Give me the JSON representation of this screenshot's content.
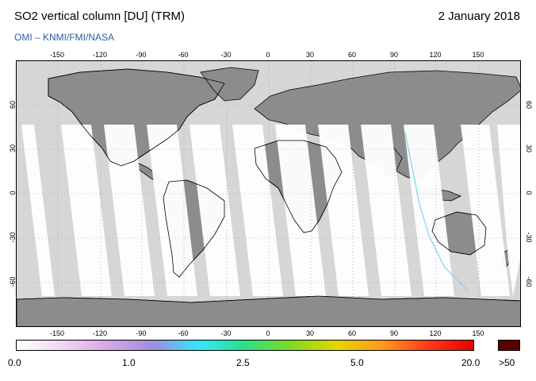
{
  "header": {
    "title": "SO2 vertical column [DU] (TRM)",
    "date": "2 January 2018",
    "credit": "OMI  –  KNMI/FMI/NASA"
  },
  "map": {
    "lon_ticks": [
      "-150",
      "-120",
      "-90",
      "-60",
      "-30",
      "0",
      "30",
      "60",
      "90",
      "120",
      "150"
    ],
    "lat_ticks": [
      "60",
      "30",
      "0",
      "-30",
      "-60"
    ],
    "colors": {
      "land": "#8c8c8c",
      "no_data": "#d6d6d6",
      "swath": "#ffffff",
      "coast": "#000000",
      "grid": "#8a8a8a"
    }
  },
  "colorbar": {
    "labels": [
      "0.0",
      "1.0",
      "2.5",
      "5.0",
      "20.0",
      ">50"
    ],
    "stops": [
      "#ffffff",
      "#f2d6f2",
      "#d9a6e6",
      "#9a8fe0",
      "#33e6ff",
      "#29e08a",
      "#7ddc1f",
      "#e6d600",
      "#ff9a1a",
      "#ff3b1a",
      "#e60000"
    ],
    "overflow_color": "#5a0000"
  }
}
